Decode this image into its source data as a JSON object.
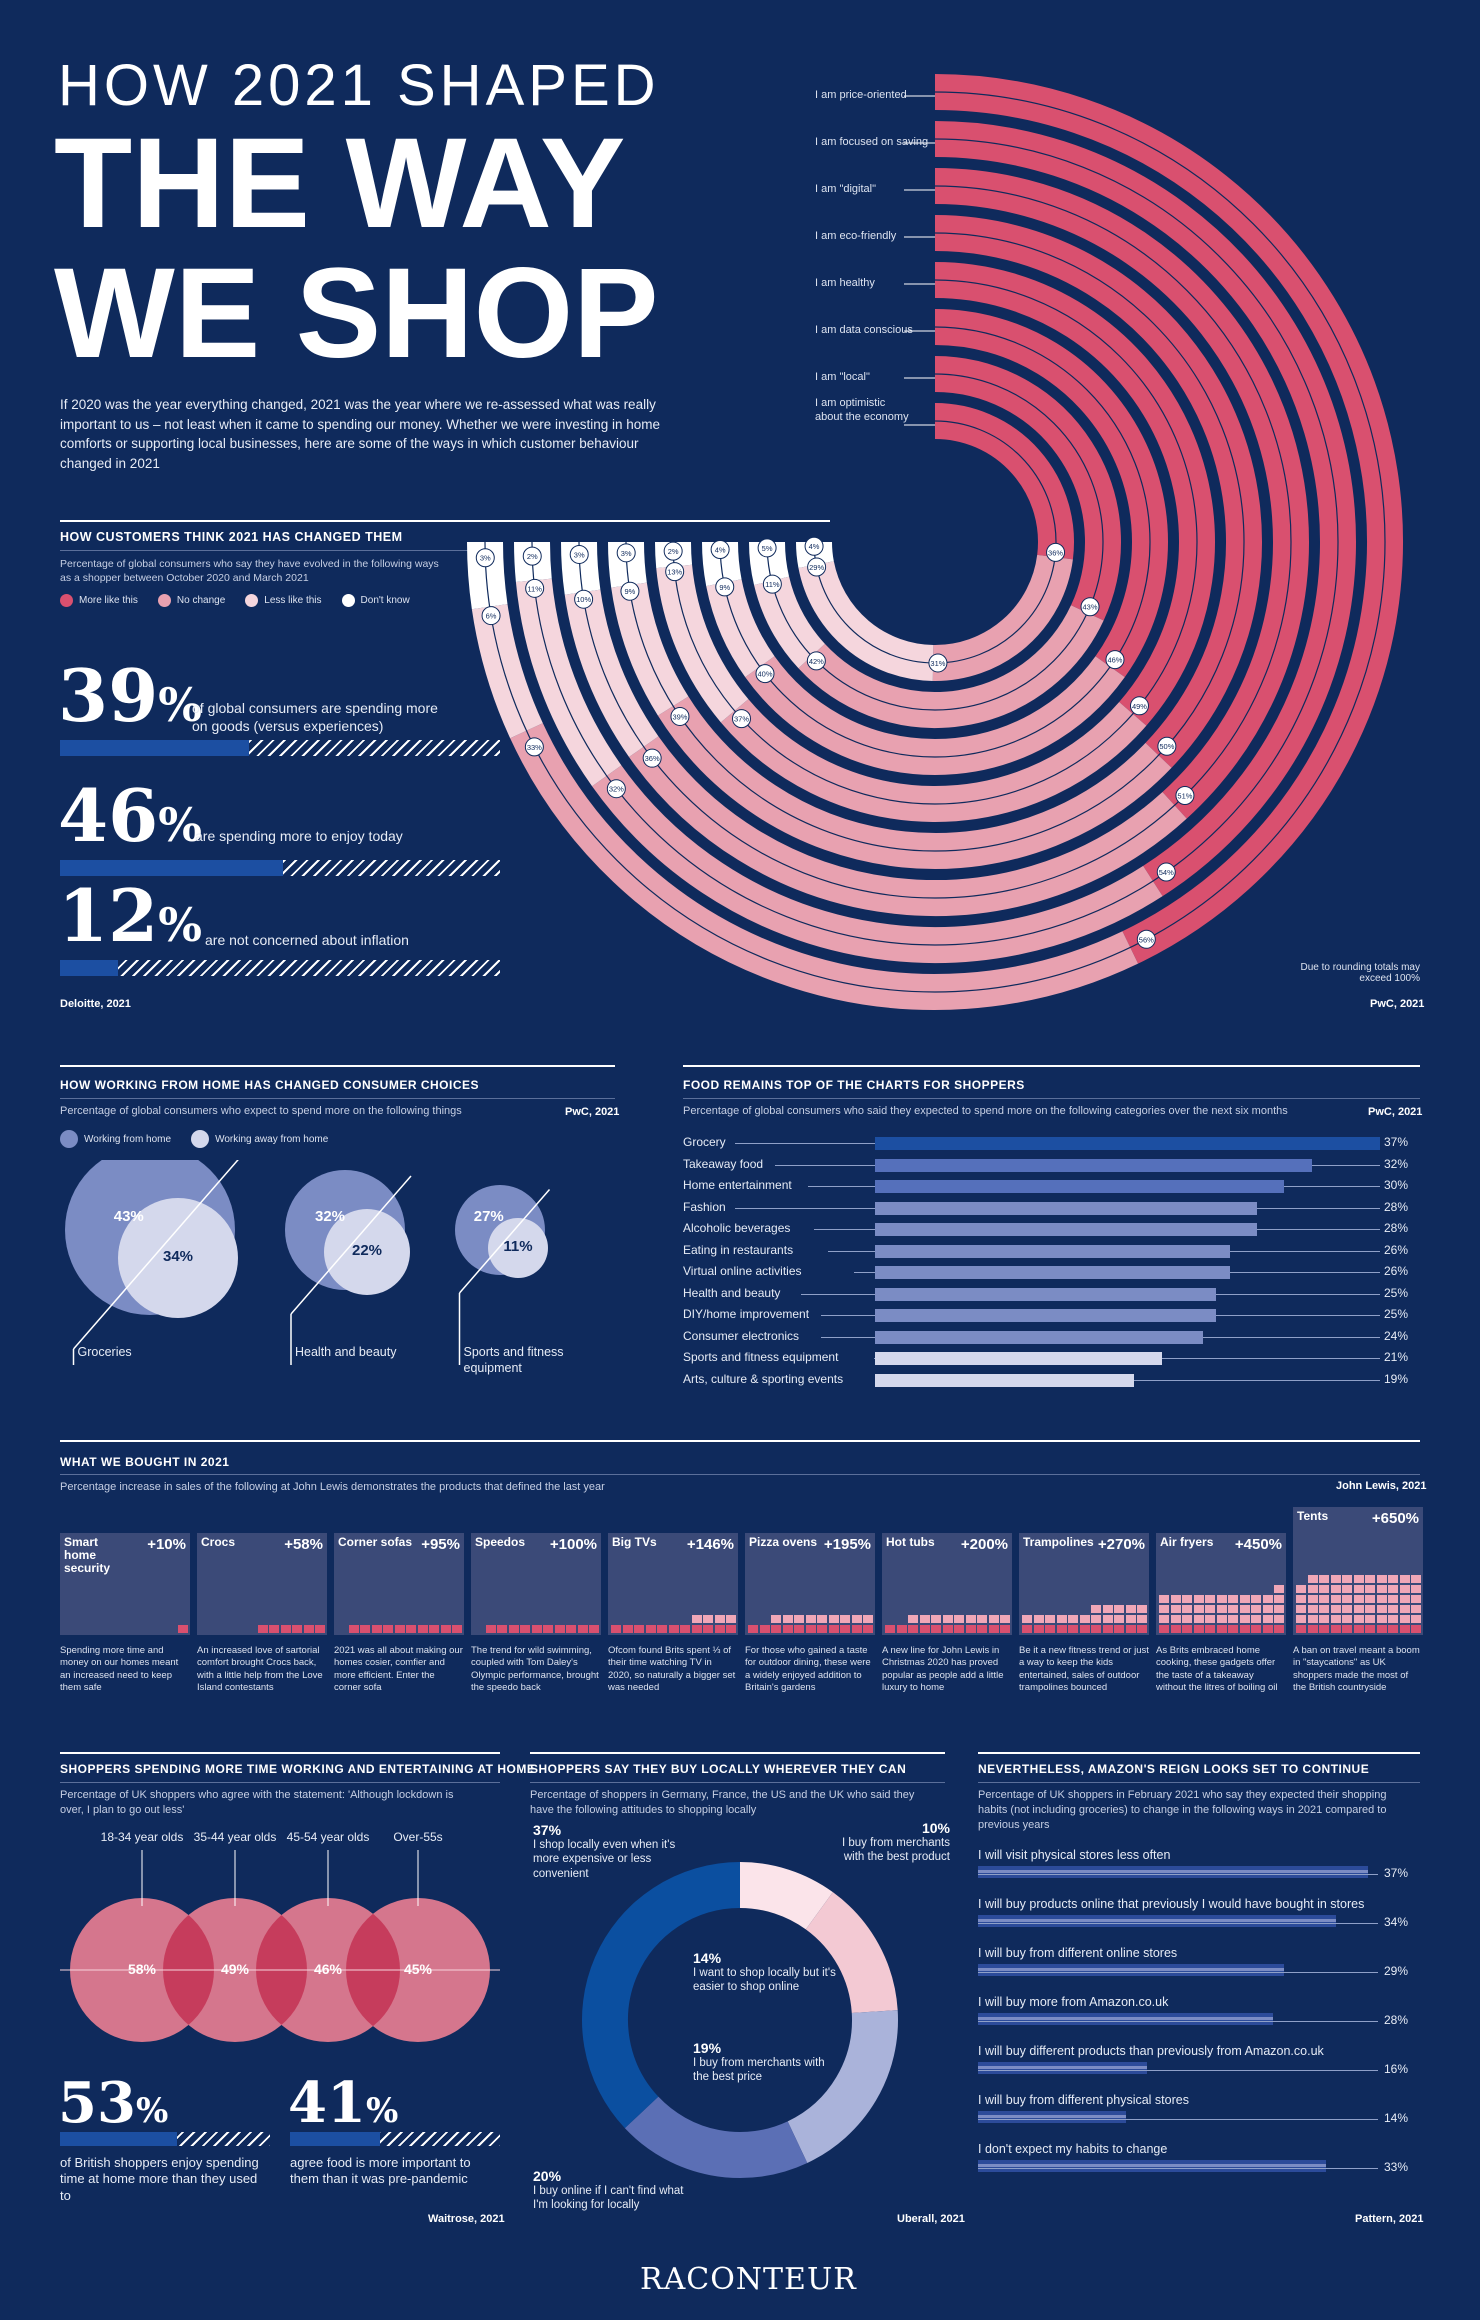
{
  "header": {
    "line1": "HOW 2021 SHAPED",
    "line2": "THE WAY",
    "line3": "WE SHOP",
    "intro": "If 2020 was the year everything changed, 2021 was the year where we re-assessed what was really important to us – not least when it came to spending our money. Whether we were investing in home comforts or supporting local businesses, here are some of the ways in which customer behaviour changed in 2021"
  },
  "section1": {
    "title": "HOW CUSTOMERS THINK 2021 HAS CHANGED THEM",
    "subtitle": "Percentage of global consumers who say they have evolved in the following ways as a shopper between October 2020 and March 2021",
    "legend": [
      "More like this",
      "No change",
      "Less like this",
      "Don't know"
    ],
    "legend_colors": [
      "#d9506f",
      "#e8a1b0",
      "#f5d6dd",
      "#ffffff"
    ],
    "rings": [
      {
        "label": "I am price-oriented",
        "more": 56,
        "no": 33,
        "less": 6,
        "dk": 3
      },
      {
        "label": "I am focused on saving",
        "more": 54,
        "no": 32,
        "less": 11,
        "dk": 2
      },
      {
        "label": "I am \"digital\"",
        "more": 51,
        "no": 36,
        "less": 10,
        "dk": 3
      },
      {
        "label": "I am eco-friendly",
        "more": 50,
        "no": 39,
        "less": 9,
        "dk": 3
      },
      {
        "label": "I am healthy",
        "more": 49,
        "no": 37,
        "less": 13,
        "dk": 2
      },
      {
        "label": "I am data conscious",
        "more": 46,
        "no": 40,
        "less": 9,
        "dk": 4
      },
      {
        "label": "I am \"local\"",
        "more": 43,
        "no": 42,
        "less": 11,
        "dk": 5
      },
      {
        "label": "I am optimistic about the economy",
        "more": 36,
        "no": 31,
        "less": 29,
        "dk": 4
      }
    ],
    "stats": [
      {
        "value": "39",
        "unit": "%",
        "text": "of global consumers are spending more on goods (versus experiences)",
        "fraction": 0.39
      },
      {
        "value": "46",
        "unit": "%",
        "text": "are spending more to enjoy today",
        "fraction": 0.46
      },
      {
        "value": "12",
        "unit": "%",
        "text": "are not concerned about inflation",
        "fraction": 0.12
      }
    ],
    "source_left": "Deloitte, 2021",
    "source_right": "PwC, 2021",
    "rounding_note": "Due to rounding totals may exceed 100%"
  },
  "section2": {
    "title": "HOW WORKING FROM HOME HAS CHANGED CONSUMER CHOICES",
    "subtitle": "Percentage of global consumers who expect to spend more on the following things",
    "source": "PwC, 2021",
    "legend": [
      "Working from home",
      "Working away from home"
    ],
    "colors": [
      "#7b8cc4",
      "#d4d8ec"
    ],
    "items": [
      {
        "label": "Groceries",
        "home": "43%",
        "away": "34%"
      },
      {
        "label": "Health and beauty",
        "home": "32%",
        "away": "22%"
      },
      {
        "label": "Sports and fitness equipment",
        "home": "27%",
        "away": "11%"
      }
    ]
  },
  "section3": {
    "title": "FOOD REMAINS TOP OF THE CHARTS FOR SHOPPERS",
    "subtitle": "Percentage of global consumers who said they expected to spend more on the following categories over the next six months",
    "source": "PwC, 2021",
    "rows": [
      {
        "label": "Grocery",
        "value": 37,
        "text": "37%"
      },
      {
        "label": "Takeaway food",
        "value": 32,
        "text": "32%"
      },
      {
        "label": "Home entertainment",
        "value": 30,
        "text": "30%"
      },
      {
        "label": "Fashion",
        "value": 28,
        "text": "28%"
      },
      {
        "label": "Alcoholic beverages",
        "value": 28,
        "text": "28%"
      },
      {
        "label": "Eating in restaurants",
        "value": 26,
        "text": "26%"
      },
      {
        "label": "Virtual online activities",
        "value": 26,
        "text": "26%"
      },
      {
        "label": "Health and beauty",
        "value": 25,
        "text": "25%"
      },
      {
        "label": "DIY/home improvement",
        "value": 25,
        "text": "25%"
      },
      {
        "label": "Consumer electronics",
        "value": 24,
        "text": "24%"
      },
      {
        "label": "Sports and fitness equipment",
        "value": 21,
        "text": "21%"
      },
      {
        "label": "Arts, culture & sporting events",
        "value": 19,
        "text": "19%"
      }
    ]
  },
  "section4": {
    "title": "WHAT WE BOUGHT IN 2021",
    "subtitle": "Percentage increase in sales of the following at John Lewis demonstrates the products that defined the last year",
    "source": "John Lewis, 2021",
    "items": [
      {
        "name": "Smart home security",
        "value": "+10%",
        "pct": 10,
        "desc": "Spending more time and money on our homes meant an increased need to keep them safe"
      },
      {
        "name": "Crocs",
        "value": "+58%",
        "pct": 58,
        "desc": "An increased love of sartorial comfort brought Crocs back, with a little help from the Love Island contestants"
      },
      {
        "name": "Corner sofas",
        "value": "+95%",
        "pct": 95,
        "desc": "2021 was all about making our homes cosier, comfier and more efficient. Enter the corner sofa"
      },
      {
        "name": "Speedos",
        "value": "+100%",
        "pct": 100,
        "desc": "The trend for wild swimming, coupled with Tom Daley's Olympic performance, brought the speedo back"
      },
      {
        "name": "Big TVs",
        "value": "+146%",
        "pct": 146,
        "desc": "Ofcom found Brits spent ⅓ of their time watching TV in 2020, so naturally a bigger set was needed"
      },
      {
        "name": "Pizza ovens",
        "value": "+195%",
        "pct": 195,
        "desc": "For those who gained a taste for outdoor dining, these were a widely enjoyed addition to Britain's gardens"
      },
      {
        "name": "Hot tubs",
        "value": "+200%",
        "pct": 200,
        "desc": "A new line for John Lewis in Christmas 2020 has proved popular as people add a little luxury to home"
      },
      {
        "name": "Trampolines",
        "value": "+270%",
        "pct": 270,
        "desc": "Be it a new fitness trend or just a way to keep the kids entertained, sales of outdoor trampolines bounced"
      },
      {
        "name": "Air fryers",
        "value": "+450%",
        "pct": 450,
        "desc": "As Brits embraced home cooking, these gadgets offer the taste of a takeaway without the litres of boiling oil"
      },
      {
        "name": "Tents",
        "value": "+650%",
        "pct": 650,
        "desc": "A ban on travel meant a boom in \"staycations\" as UK shoppers made the most of the British countryside"
      }
    ]
  },
  "section5": {
    "title": "SHOPPERS SPENDING MORE TIME WORKING AND ENTERTAINING AT HOME",
    "subtitle": "Percentage of UK shoppers who agree with the statement: 'Although lockdown is over, I plan to go out less'",
    "groups": [
      {
        "label": "18-34 year olds",
        "value": "58%"
      },
      {
        "label": "35-44 year olds",
        "value": "49%"
      },
      {
        "label": "45-54 year olds",
        "value": "46%"
      },
      {
        "label": "Over-55s",
        "value": "45%"
      }
    ],
    "stats": [
      {
        "value": "53",
        "unit": "%",
        "text": "of British shoppers enjoy spending time at home more than they used to",
        "fraction": 0.53
      },
      {
        "value": "41",
        "unit": "%",
        "text": "agree food is more important to them than it was pre-pandemic",
        "fraction": 0.41
      }
    ],
    "source": "Waitrose, 2021"
  },
  "section6": {
    "title": "SHOPPERS SAY THEY BUY LOCALLY WHEREVER THEY CAN",
    "subtitle": "Percentage of shoppers in Germany, France, the US and the UK who said they have the following attitudes to shopping locally",
    "segments": [
      {
        "value": 10,
        "pct": "10%",
        "text": "I buy from merchants with the best product",
        "color": "#fbe4ea"
      },
      {
        "value": 14,
        "pct": "14%",
        "text": "I want to shop locally but it's easier to shop online",
        "color": "#f3c9d3"
      },
      {
        "value": 19,
        "pct": "19%",
        "text": "I buy from merchants with the best price",
        "color": "#aab3da"
      },
      {
        "value": 20,
        "pct": "20%",
        "text": "I buy online if I can't find what I'm looking for locally",
        "color": "#5b6fb5"
      },
      {
        "value": 37,
        "pct": "37%",
        "text": "I shop locally even when it's more expensive or less convenient",
        "color": "#0b4fa0"
      }
    ],
    "source": "Uberall, 2021"
  },
  "section7": {
    "title": "NEVERTHELESS, AMAZON'S REIGN LOOKS SET TO CONTINUE",
    "subtitle": "Percentage of UK shoppers in February 2021 who say they expected their shopping habits (not including groceries) to change in the following ways in 2021 compared to previous years",
    "rows": [
      {
        "label": "I will visit physical stores less often",
        "value": 37,
        "text": "37%"
      },
      {
        "label": "I will buy products online that previously I would have bought in stores",
        "value": 34,
        "text": "34%"
      },
      {
        "label": "I will buy from different online stores",
        "value": 29,
        "text": "29%"
      },
      {
        "label": "I will buy more from Amazon.co.uk",
        "value": 28,
        "text": "28%"
      },
      {
        "label": "I will buy different products than previously from Amazon.co.uk",
        "value": 16,
        "text": "16%"
      },
      {
        "label": "I will buy from different physical stores",
        "value": 14,
        "text": "14%"
      },
      {
        "label": "I don't expect my habits to change",
        "value": 33,
        "text": "33%"
      }
    ],
    "source": "Pattern, 2021"
  },
  "footer": {
    "brand": "RACONTEUR"
  }
}
